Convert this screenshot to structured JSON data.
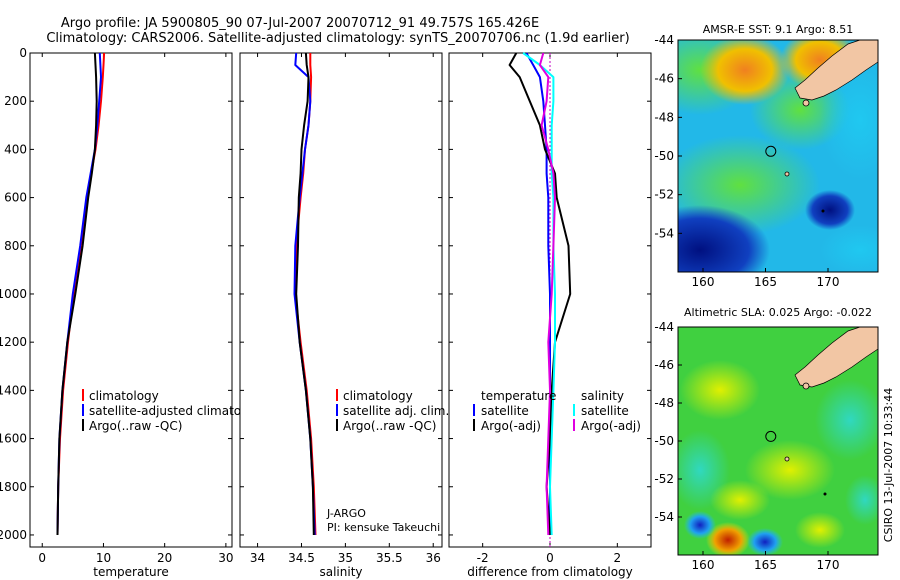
{
  "title_line1": "Argo profile: JA 5900805_90 07-Jul-2007 20070712_91 49.757S 165.426E",
  "title_line2": "Climatology: CARS2006. Satellite-adjusted climatology: synTS_20070706.nc (1.9d earlier)",
  "credit": "CSIRO 13-Jul-2007 10:33:44",
  "colors": {
    "climatology": "#ff0000",
    "satellite": "#0000ff",
    "argo": "#000000",
    "temp_satellite": "#0000ff",
    "sal_satellite": "#00ffff",
    "sal_argo": "#e000e0",
    "land": "#f2c6a4"
  },
  "chart_data": [
    {
      "type": "line",
      "name": "temperature-profile",
      "xlabel": "temperature",
      "ylabel": "",
      "xlim": [
        -2,
        31
      ],
      "ylim": [
        2050,
        0
      ],
      "xticks": [
        "0",
        "10",
        "20",
        "30"
      ],
      "xtick_values": [
        0,
        10,
        20,
        30
      ],
      "yticks": [
        "0",
        "200",
        "400",
        "600",
        "800",
        "1000",
        "1200",
        "1400",
        "1600",
        "1800",
        "2000"
      ],
      "ytick_values": [
        0,
        200,
        400,
        600,
        800,
        1000,
        1200,
        1400,
        1600,
        1800,
        2000
      ],
      "legend": [
        "climatology",
        "satellite-adjusted climatology",
        "Argo(..raw -QC)"
      ],
      "series": [
        {
          "name": "climatology",
          "color_key": "climatology",
          "x": [
            10.1,
            10.0,
            9.9,
            9.6,
            9.2,
            8.7,
            8.0,
            7.3,
            6.3,
            5.1,
            4.2,
            3.4,
            2.9,
            2.6,
            2.5
          ],
          "y": [
            0,
            50,
            100,
            200,
            300,
            400,
            500,
            600,
            800,
            1000,
            1200,
            1400,
            1600,
            1800,
            2000
          ]
        },
        {
          "name": "satellite-adjusted climatology",
          "color_key": "satellite",
          "x": [
            9.4,
            9.5,
            9.6,
            9.3,
            9.0,
            8.6,
            7.9,
            7.2,
            6.2,
            5.0,
            4.1,
            3.3,
            2.8,
            2.6,
            2.5
          ],
          "y": [
            0,
            50,
            100,
            200,
            300,
            400,
            500,
            600,
            800,
            1000,
            1200,
            1400,
            1600,
            1800,
            2000
          ]
        },
        {
          "name": "Argo(..raw -QC)",
          "color_key": "argo",
          "x": [
            8.6,
            8.7,
            8.8,
            8.9,
            8.8,
            8.6,
            8.1,
            7.5,
            6.6,
            5.4,
            4.1,
            3.3,
            2.8,
            2.6,
            2.5
          ],
          "y": [
            0,
            50,
            100,
            200,
            300,
            400,
            500,
            600,
            800,
            1000,
            1200,
            1400,
            1600,
            1800,
            2000
          ]
        }
      ]
    },
    {
      "type": "line",
      "name": "salinity-profile",
      "xlabel": "salinity",
      "xlim": [
        33.8,
        36.1
      ],
      "ylim": [
        2050,
        0
      ],
      "xticks": [
        "34",
        "34.5",
        "35",
        "35.5",
        "36"
      ],
      "xtick_values": [
        34,
        34.5,
        35,
        35.5,
        36
      ],
      "legend": [
        "climatology",
        "satellite adj. clim.",
        "Argo(..raw -QC)"
      ],
      "annotations": [
        "J-ARGO",
        "PI: kensuke Takeuchi"
      ],
      "series": [
        {
          "name": "climatology",
          "color_key": "climatology",
          "x": [
            34.6,
            34.6,
            34.61,
            34.6,
            34.58,
            34.54,
            34.52,
            34.49,
            34.44,
            34.43,
            34.49,
            34.56,
            34.61,
            34.64,
            34.66
          ],
          "y": [
            0,
            50,
            100,
            200,
            300,
            400,
            500,
            600,
            800,
            1000,
            1200,
            1400,
            1600,
            1800,
            2000
          ]
        },
        {
          "name": "satellite adj. clim.",
          "color_key": "satellite",
          "x": [
            34.44,
            34.43,
            34.58,
            34.6,
            34.58,
            34.54,
            34.51,
            34.48,
            34.43,
            34.42,
            34.48,
            34.55,
            34.6,
            34.63,
            34.65
          ],
          "y": [
            0,
            50,
            100,
            200,
            300,
            400,
            500,
            600,
            800,
            1000,
            1200,
            1400,
            1600,
            1800,
            2000
          ]
        },
        {
          "name": "Argo(..raw -QC)",
          "color_key": "argo",
          "x": [
            34.55,
            34.56,
            34.58,
            34.57,
            34.53,
            34.5,
            34.49,
            34.47,
            34.46,
            34.44,
            34.48,
            34.55,
            34.6,
            34.63,
            34.64
          ],
          "y": [
            0,
            50,
            100,
            200,
            300,
            400,
            500,
            600,
            800,
            1000,
            1200,
            1400,
            1600,
            1800,
            2000
          ]
        }
      ]
    },
    {
      "type": "line",
      "name": "difference-from-climatology",
      "xlabel": "difference from climatology",
      "xlim": [
        -3,
        3
      ],
      "ylim": [
        2050,
        0
      ],
      "xticks": [
        "-2",
        "0",
        "2"
      ],
      "xtick_values": [
        -2,
        0,
        2
      ],
      "legend_temperature": {
        "heading": "temperature",
        "items": [
          "satellite",
          "Argo(-adj)"
        ]
      },
      "legend_salinity": {
        "heading": "salinity",
        "items": [
          "satellite",
          "Argo(-adj)"
        ]
      },
      "series": [
        {
          "name": "temperature satellite",
          "color_key": "temp_satellite",
          "x": [
            -0.7,
            -0.5,
            -0.3,
            -0.2,
            -0.15,
            -0.1,
            -0.1,
            -0.05,
            -0.05,
            0,
            0,
            0,
            0,
            0,
            0
          ],
          "y": [
            0,
            50,
            100,
            200,
            300,
            400,
            500,
            600,
            800,
            1000,
            1200,
            1400,
            1600,
            1800,
            2000
          ]
        },
        {
          "name": "temperature Argo(-adj)",
          "color_key": "argo",
          "x": [
            -1.0,
            -1.2,
            -0.9,
            -0.6,
            -0.3,
            -0.15,
            0.15,
            0.2,
            0.55,
            0.6,
            0.15,
            0.05,
            0.0,
            -0.1,
            0.0
          ],
          "y": [
            0,
            50,
            100,
            200,
            300,
            400,
            500,
            600,
            800,
            1000,
            1200,
            1400,
            1600,
            1800,
            2000
          ]
        },
        {
          "name": "salinity satellite",
          "color_key": "sal_satellite",
          "x": [
            -0.8,
            -0.3,
            0.1,
            0.1,
            0.05,
            0.05,
            0.05,
            0.1,
            0.1,
            0.15,
            0.15,
            0.1,
            0.05,
            0.0,
            0.05
          ],
          "y": [
            0,
            50,
            100,
            200,
            300,
            400,
            500,
            600,
            800,
            1000,
            1200,
            1400,
            1600,
            1800,
            2000
          ]
        },
        {
          "name": "salinity Argo(-adj)",
          "color_key": "sal_argo",
          "x": [
            -0.2,
            -0.3,
            -0.05,
            -0.1,
            -0.25,
            -0.05,
            0.1,
            0.15,
            0.1,
            0.05,
            -0.05,
            0.0,
            -0.05,
            -0.1,
            -0.05
          ],
          "y": [
            0,
            50,
            100,
            200,
            300,
            400,
            500,
            600,
            800,
            1000,
            1200,
            1400,
            1600,
            1800,
            2000
          ]
        }
      ]
    },
    {
      "type": "heatmap",
      "name": "sst-map",
      "title": "AMSR-E SST: 9.1 Argo: 8.51",
      "xlim": [
        158,
        174
      ],
      "ylim": [
        -56,
        -44
      ],
      "xticks": [
        "160",
        "165",
        "170"
      ],
      "xtick_values": [
        160,
        165,
        170
      ],
      "yticks": [
        "-44",
        "-46",
        "-48",
        "-50",
        "-52",
        "-54"
      ],
      "ytick_values": [
        -44,
        -46,
        -48,
        -50,
        -52,
        -54
      ],
      "profile_location": {
        "lon": 165.426,
        "lat": -49.757
      }
    },
    {
      "type": "heatmap",
      "name": "sla-map",
      "title": "Altimetric SLA: 0.025 Argo: -0.022",
      "xlim": [
        158,
        174
      ],
      "ylim": [
        -56,
        -44
      ],
      "xticks": [
        "160",
        "165",
        "170"
      ],
      "xtick_values": [
        160,
        165,
        170
      ],
      "yticks": [
        "-44",
        "-46",
        "-48",
        "-50",
        "-52",
        "-54"
      ],
      "ytick_values": [
        -44,
        -46,
        -48,
        -50,
        -52,
        -54
      ],
      "profile_location": {
        "lon": 165.426,
        "lat": -49.757
      }
    }
  ]
}
